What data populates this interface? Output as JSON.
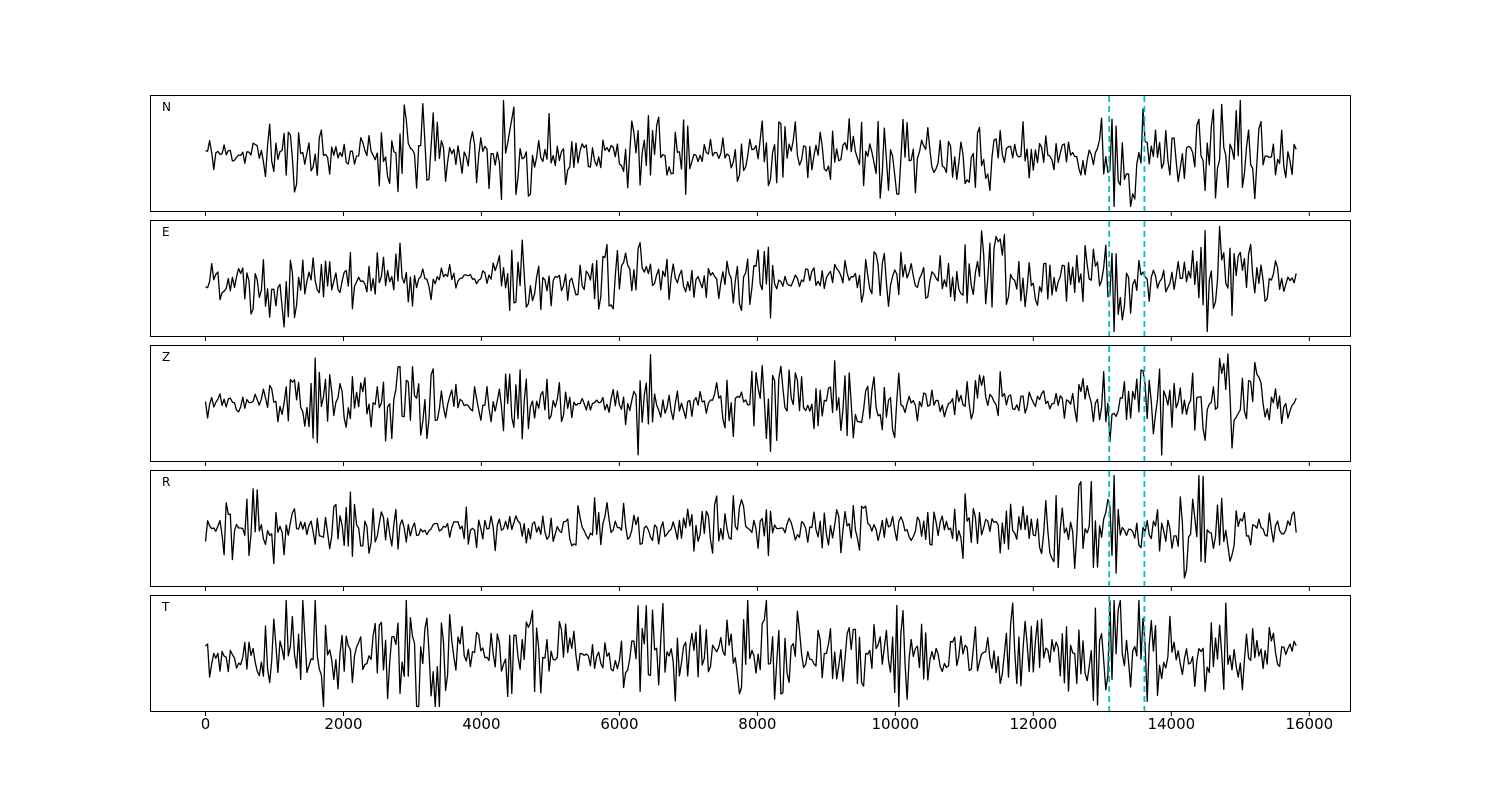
{
  "figure": {
    "background": "#ffffff",
    "trace_color": "#000000",
    "spine_color": "#000000",
    "tick_color": "#000000"
  },
  "chart_data": {
    "type": "line",
    "title": "",
    "xlabel": "",
    "ylabel": "",
    "grid": false,
    "legend": null,
    "xlim": [
      -790,
      16590
    ],
    "x_start": 0,
    "x_end": 15800,
    "sample_step": 30,
    "x_ticks": [
      0,
      2000,
      4000,
      6000,
      8000,
      10000,
      12000,
      14000,
      16000
    ],
    "x_tick_labels": [
      "0",
      "2000",
      "4000",
      "6000",
      "8000",
      "10000",
      "12000",
      "14000",
      "16000"
    ],
    "pick_lines": {
      "x": [
        13100,
        13610
      ],
      "color": "#00bfbf",
      "style": "dashed",
      "dash": [
        6,
        4
      ],
      "width": 1.8
    },
    "panels": [
      {
        "label": "N",
        "seed": 11,
        "envelope": [
          [
            0,
            0.3
          ],
          [
            1500,
            0.38
          ],
          [
            3000,
            0.36
          ],
          [
            5500,
            0.33
          ],
          [
            8000,
            0.35
          ],
          [
            9700,
            0.36
          ],
          [
            11500,
            0.33
          ],
          [
            12800,
            0.42
          ],
          [
            13250,
            0.55
          ],
          [
            13800,
            0.46
          ],
          [
            14800,
            0.45
          ],
          [
            15300,
            0.38
          ],
          [
            15800,
            0.24
          ]
        ],
        "spikes": [
          [
            1600,
            0.5,
            1
          ],
          [
            2850,
            0.45,
            -1
          ],
          [
            4250,
            0.4,
            1
          ],
          [
            6950,
            0.45,
            -1
          ],
          [
            9750,
            0.8,
            1
          ],
          [
            13150,
            0.8,
            1
          ],
          [
            14500,
            0.5,
            -1
          ]
        ]
      },
      {
        "label": "E",
        "seed": 22,
        "envelope": [
          [
            0,
            0.26
          ],
          [
            1500,
            0.36
          ],
          [
            2300,
            0.32
          ],
          [
            4000,
            0.29
          ],
          [
            6500,
            0.28
          ],
          [
            8200,
            0.31
          ],
          [
            10000,
            0.29
          ],
          [
            12000,
            0.32
          ],
          [
            13000,
            0.36
          ],
          [
            13400,
            0.44
          ],
          [
            14200,
            0.44
          ],
          [
            14650,
            0.55
          ],
          [
            15200,
            0.4
          ],
          [
            15800,
            0.24
          ]
        ],
        "spikes": [
          [
            1700,
            0.42,
            -1
          ],
          [
            2100,
            0.48,
            1
          ],
          [
            8150,
            0.52,
            1
          ],
          [
            13160,
            0.9,
            -1
          ],
          [
            14480,
            0.6,
            1
          ],
          [
            14750,
            0.55,
            -1
          ]
        ]
      },
      {
        "label": "Z",
        "seed": 33,
        "envelope": [
          [
            0,
            0.25
          ],
          [
            1500,
            0.27
          ],
          [
            2600,
            0.29
          ],
          [
            4200,
            0.26
          ],
          [
            6200,
            0.32
          ],
          [
            7000,
            0.3
          ],
          [
            8800,
            0.33
          ],
          [
            9600,
            0.3
          ],
          [
            11200,
            0.28
          ],
          [
            12600,
            0.3
          ],
          [
            13600,
            0.33
          ],
          [
            14300,
            0.4
          ],
          [
            15100,
            0.35
          ],
          [
            15800,
            0.26
          ]
        ],
        "spikes": [
          [
            1600,
            0.92,
            1
          ],
          [
            1780,
            0.45,
            -1
          ],
          [
            2100,
            0.4,
            -1
          ],
          [
            6280,
            0.7,
            -1
          ],
          [
            6430,
            0.52,
            -1
          ],
          [
            8850,
            0.48,
            1
          ],
          [
            9100,
            0.38,
            -1
          ],
          [
            13820,
            0.72,
            1
          ]
        ]
      },
      {
        "label": "R",
        "seed": 44,
        "envelope": [
          [
            0,
            0.22
          ],
          [
            1900,
            0.3
          ],
          [
            2500,
            0.26
          ],
          [
            4500,
            0.23
          ],
          [
            6500,
            0.22
          ],
          [
            8200,
            0.25
          ],
          [
            9800,
            0.24
          ],
          [
            11200,
            0.28
          ],
          [
            12600,
            0.31
          ],
          [
            13150,
            0.38
          ],
          [
            13700,
            0.33
          ],
          [
            14300,
            0.52
          ],
          [
            14900,
            0.47
          ],
          [
            15400,
            0.33
          ],
          [
            15800,
            0.24
          ]
        ],
        "spikes": [
          [
            2080,
            0.45,
            -1
          ],
          [
            8170,
            0.48,
            -1
          ],
          [
            13180,
            0.92,
            1
          ],
          [
            14380,
            0.58,
            -1
          ],
          [
            14650,
            0.52,
            1
          ]
        ]
      },
      {
        "label": "T",
        "seed": 55,
        "envelope": [
          [
            0,
            0.34
          ],
          [
            1000,
            0.4
          ],
          [
            2800,
            0.46
          ],
          [
            3600,
            0.42
          ],
          [
            4600,
            0.46
          ],
          [
            5600,
            0.42
          ],
          [
            7000,
            0.44
          ],
          [
            8600,
            0.4
          ],
          [
            10000,
            0.44
          ],
          [
            11600,
            0.4
          ],
          [
            13000,
            0.46
          ],
          [
            14300,
            0.48
          ],
          [
            15100,
            0.43
          ],
          [
            15800,
            0.28
          ]
        ],
        "spikes": [
          [
            850,
            0.55,
            -1
          ],
          [
            1700,
            0.5,
            -1
          ],
          [
            2920,
            0.7,
            1
          ],
          [
            3380,
            0.55,
            -1
          ],
          [
            4450,
            0.55,
            -1
          ],
          [
            6900,
            0.6,
            1
          ],
          [
            8250,
            0.5,
            -1
          ],
          [
            9980,
            0.65,
            -1
          ],
          [
            10450,
            0.45,
            1
          ],
          [
            12450,
            0.55,
            -1
          ],
          [
            13120,
            0.55,
            1
          ],
          [
            14550,
            0.6,
            -1
          ]
        ]
      }
    ]
  }
}
